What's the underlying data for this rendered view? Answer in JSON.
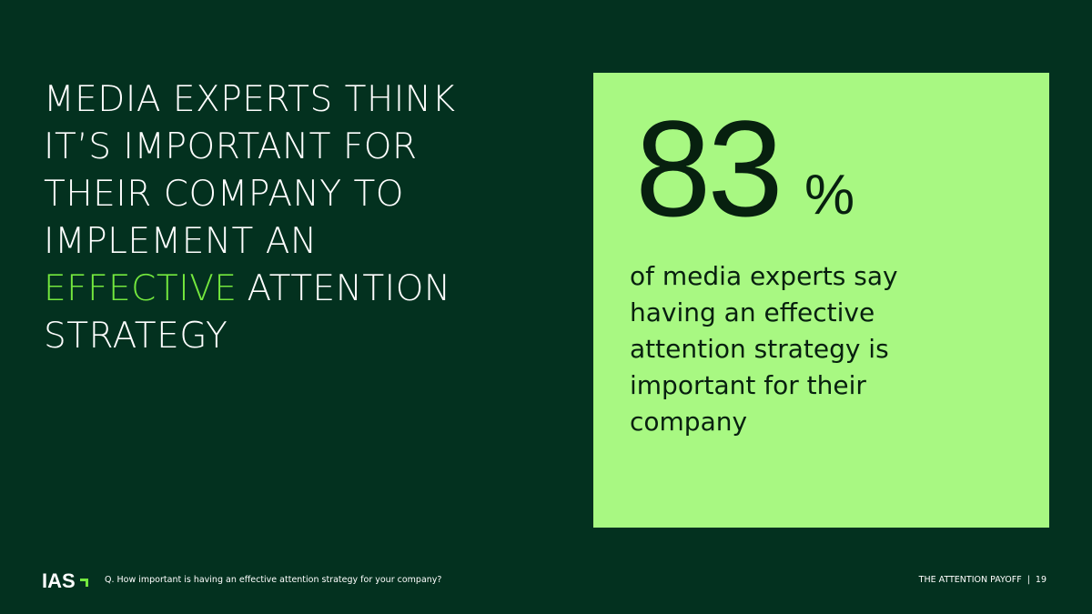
{
  "headline": {
    "lines": [
      "MEDIA EXPERTS THINK",
      "IT’S IMPORTANT FOR",
      "THEIR COMPANY TO",
      "IMPLEMENT AN"
    ],
    "highlight": "EFFECTIVE",
    "highlight_rest": "ATTENTION",
    "last_line": "STRATEGY"
  },
  "stat": {
    "value": 83,
    "unit": "%",
    "description_lines": [
      "of media experts say",
      "having an effective",
      "attention strategy is",
      "important for their",
      "company"
    ]
  },
  "footer": {
    "logo": "IAS",
    "question": "Q. How important is having an effective attention strategy for your company?",
    "report": "THE ATTENTION PAYOFF",
    "separator": "|",
    "page": 19
  }
}
